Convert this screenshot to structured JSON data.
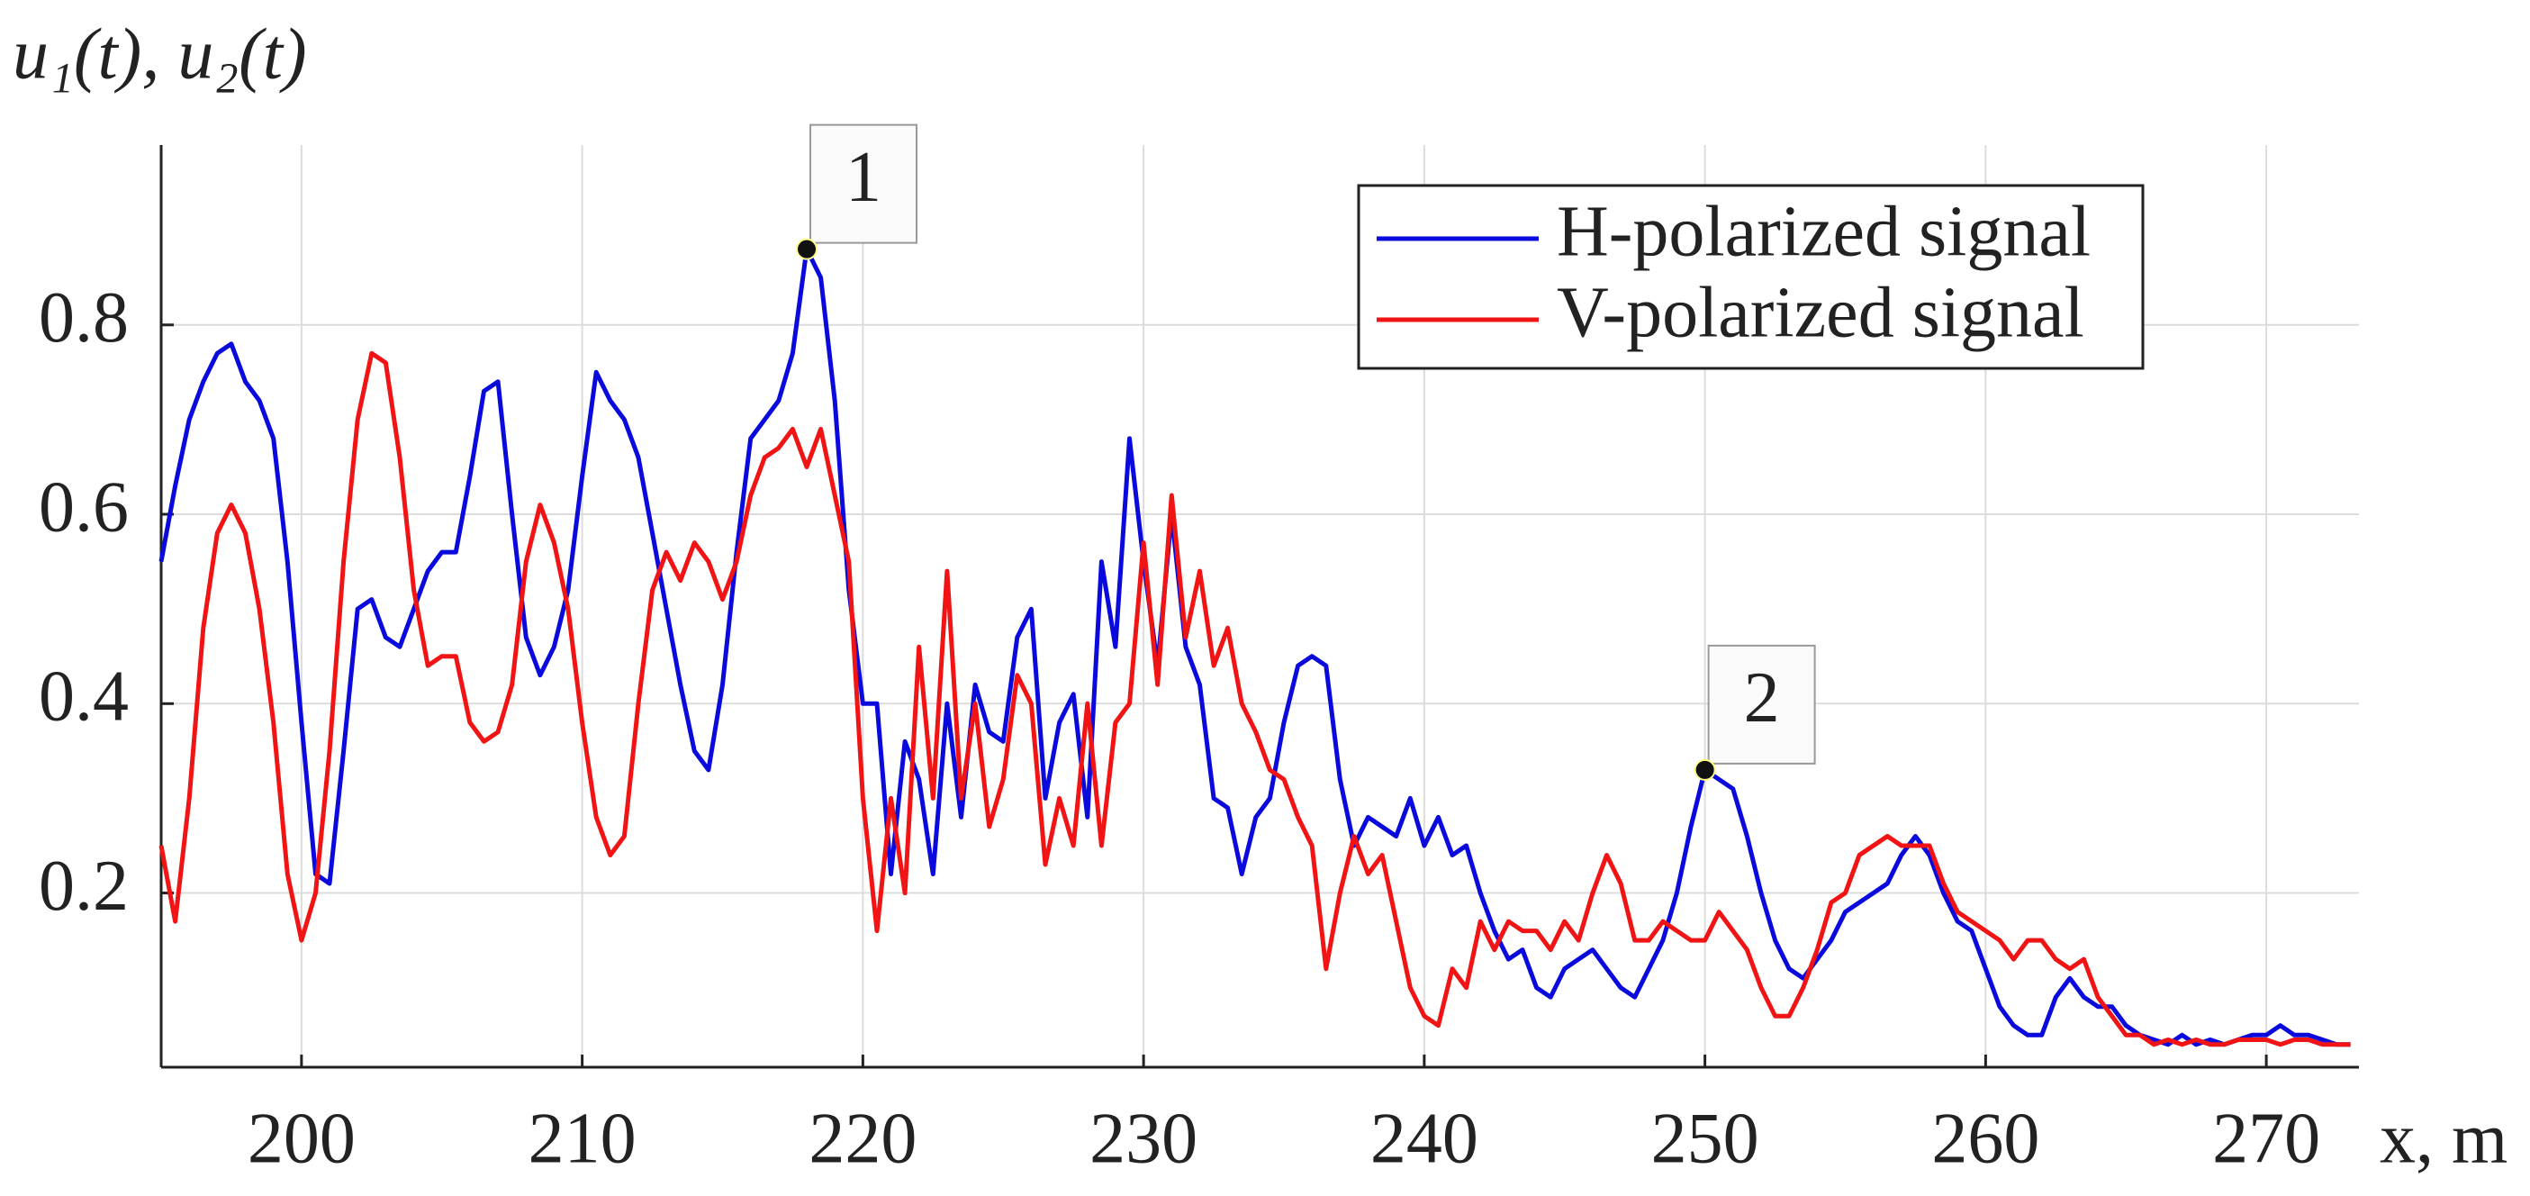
{
  "chart_data": {
    "type": "line",
    "y_label": "u₁(t), u₂(t)",
    "x_label": "x, m",
    "xlim": [
      195,
      273.3
    ],
    "ylim": [
      0.016,
      0.99
    ],
    "xticks": [
      200,
      210,
      220,
      230,
      240,
      250,
      260,
      270
    ],
    "yticks": [
      0.2,
      0.4,
      0.6,
      0.8
    ],
    "grid": true,
    "legend": "upper right",
    "x": [
      195,
      195.5,
      196,
      196.5,
      197,
      197.5,
      198,
      198.5,
      199,
      199.5,
      200,
      200.5,
      201,
      201.5,
      202,
      202.5,
      203,
      203.5,
      204,
      204.5,
      205,
      205.5,
      206,
      206.5,
      207,
      207.5,
      208,
      208.5,
      209,
      209.5,
      210,
      210.5,
      211,
      211.5,
      212,
      212.5,
      213,
      213.5,
      214,
      214.5,
      215,
      215.5,
      216,
      216.5,
      217,
      217.5,
      218,
      218.5,
      219,
      219.5,
      220,
      220.5,
      221,
      221.5,
      222,
      222.5,
      223,
      223.5,
      224,
      224.5,
      225,
      225.5,
      226,
      226.5,
      227,
      227.5,
      228,
      228.5,
      229,
      229.5,
      230,
      230.5,
      231,
      231.5,
      232,
      232.5,
      233,
      233.5,
      234,
      234.5,
      235,
      235.5,
      236,
      236.5,
      237,
      237.5,
      238,
      238.5,
      239,
      239.5,
      240,
      240.5,
      241,
      241.5,
      242,
      242.5,
      243,
      243.5,
      244,
      244.5,
      245,
      245.5,
      246,
      246.5,
      247,
      247.5,
      248,
      248.5,
      249,
      249.5,
      250,
      250.5,
      251,
      251.5,
      252,
      252.5,
      253,
      253.5,
      254,
      254.5,
      255,
      255.5,
      256,
      256.5,
      257,
      257.5,
      258,
      258.5,
      259,
      259.5,
      260,
      260.5,
      261,
      261.5,
      262,
      262.5,
      263,
      263.5,
      264,
      264.5,
      265,
      265.5,
      266,
      266.5,
      267,
      267.5,
      268,
      268.5,
      269,
      269.5,
      270,
      270.5,
      271,
      271.5,
      272,
      272.5,
      273
    ],
    "series": [
      {
        "name": "H-polarized signal",
        "color": "#0a0adc",
        "values": [
          0.55,
          0.63,
          0.7,
          0.74,
          0.77,
          0.78,
          0.74,
          0.72,
          0.68,
          0.55,
          0.38,
          0.22,
          0.21,
          0.35,
          0.5,
          0.51,
          0.47,
          0.46,
          0.5,
          0.54,
          0.56,
          0.56,
          0.64,
          0.73,
          0.74,
          0.6,
          0.47,
          0.43,
          0.46,
          0.52,
          0.64,
          0.75,
          0.72,
          0.7,
          0.66,
          0.58,
          0.5,
          0.42,
          0.35,
          0.33,
          0.42,
          0.56,
          0.68,
          0.7,
          0.72,
          0.77,
          0.88,
          0.85,
          0.72,
          0.52,
          0.4,
          0.4,
          0.22,
          0.36,
          0.32,
          0.22,
          0.4,
          0.28,
          0.42,
          0.37,
          0.36,
          0.47,
          0.5,
          0.3,
          0.38,
          0.41,
          0.28,
          0.55,
          0.46,
          0.68,
          0.55,
          0.44,
          0.6,
          0.46,
          0.42,
          0.3,
          0.29,
          0.22,
          0.28,
          0.3,
          0.38,
          0.44,
          0.45,
          0.44,
          0.32,
          0.25,
          0.28,
          0.27,
          0.26,
          0.3,
          0.25,
          0.28,
          0.24,
          0.25,
          0.2,
          0.16,
          0.13,
          0.14,
          0.1,
          0.09,
          0.12,
          0.13,
          0.14,
          0.12,
          0.1,
          0.09,
          0.12,
          0.15,
          0.2,
          0.27,
          0.33,
          0.32,
          0.31,
          0.26,
          0.2,
          0.15,
          0.12,
          0.11,
          0.13,
          0.15,
          0.18,
          0.19,
          0.2,
          0.21,
          0.24,
          0.26,
          0.24,
          0.2,
          0.17,
          0.16,
          0.12,
          0.08,
          0.06,
          0.05,
          0.05,
          0.09,
          0.11,
          0.09,
          0.08,
          0.08,
          0.06,
          0.05,
          0.045,
          0.04,
          0.05,
          0.04,
          0.045,
          0.04,
          0.045,
          0.05,
          0.05,
          0.06,
          0.05,
          0.05,
          0.045,
          0.04,
          0.04
        ]
      },
      {
        "name": "V-polarized signal",
        "color": "#f01414",
        "values": [
          0.25,
          0.17,
          0.3,
          0.48,
          0.58,
          0.61,
          0.58,
          0.5,
          0.38,
          0.22,
          0.15,
          0.2,
          0.35,
          0.55,
          0.7,
          0.77,
          0.76,
          0.66,
          0.52,
          0.44,
          0.45,
          0.45,
          0.38,
          0.36,
          0.37,
          0.42,
          0.55,
          0.61,
          0.57,
          0.5,
          0.38,
          0.28,
          0.24,
          0.26,
          0.4,
          0.52,
          0.56,
          0.53,
          0.57,
          0.55,
          0.51,
          0.55,
          0.62,
          0.66,
          0.67,
          0.69,
          0.65,
          0.69,
          0.62,
          0.55,
          0.3,
          0.16,
          0.3,
          0.2,
          0.46,
          0.3,
          0.54,
          0.3,
          0.4,
          0.27,
          0.32,
          0.43,
          0.4,
          0.23,
          0.3,
          0.25,
          0.4,
          0.25,
          0.38,
          0.4,
          0.57,
          0.42,
          0.62,
          0.47,
          0.54,
          0.44,
          0.48,
          0.4,
          0.37,
          0.33,
          0.32,
          0.28,
          0.25,
          0.12,
          0.2,
          0.26,
          0.22,
          0.24,
          0.17,
          0.1,
          0.07,
          0.06,
          0.12,
          0.1,
          0.17,
          0.14,
          0.17,
          0.16,
          0.16,
          0.14,
          0.17,
          0.15,
          0.2,
          0.24,
          0.21,
          0.15,
          0.15,
          0.17,
          0.16,
          0.15,
          0.15,
          0.18,
          0.16,
          0.14,
          0.1,
          0.07,
          0.07,
          0.1,
          0.14,
          0.19,
          0.2,
          0.24,
          0.25,
          0.26,
          0.25,
          0.25,
          0.25,
          0.21,
          0.18,
          0.17,
          0.16,
          0.15,
          0.13,
          0.15,
          0.15,
          0.13,
          0.12,
          0.13,
          0.09,
          0.07,
          0.05,
          0.05,
          0.04,
          0.045,
          0.04,
          0.045,
          0.04,
          0.04,
          0.045,
          0.045,
          0.045,
          0.04,
          0.045,
          0.045,
          0.04,
          0.04,
          0.04
        ]
      }
    ],
    "annotations": [
      {
        "label": "1",
        "x": 218,
        "y": 0.88
      },
      {
        "label": "2",
        "x": 250,
        "y": 0.33
      }
    ]
  }
}
